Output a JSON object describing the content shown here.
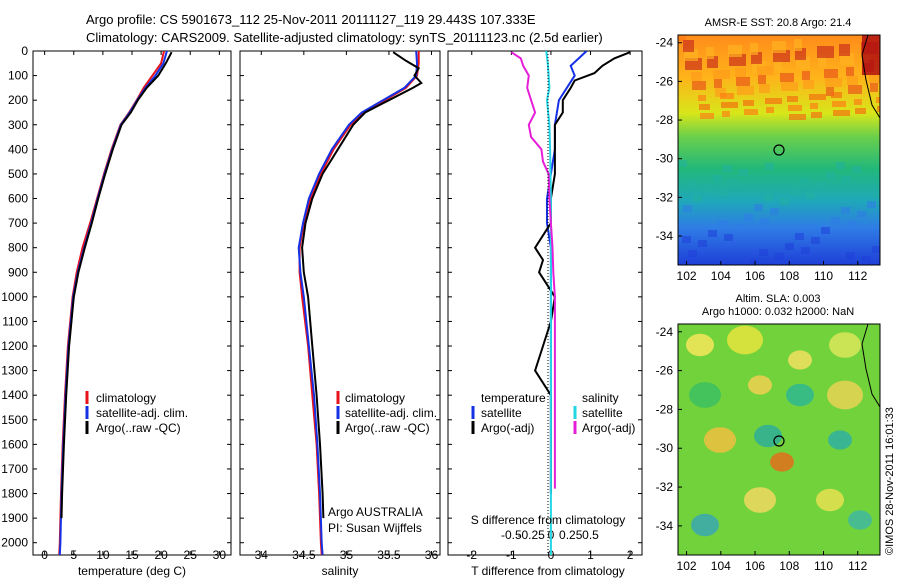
{
  "figure": {
    "title_line1": "Argo profile: CS 5901673_112 25-Nov-2011 20111127_119 29.443S 107.333E",
    "title_line2": "Climatology: CARS2009. Satellite-adjusted climatology: synTS_20111123.nc (2.5d earlier)",
    "watermark": "©IMOS 28-Nov-2011 16:01:33"
  },
  "colors": {
    "climatology": "#e8131a",
    "satellite": "#1531e6",
    "argo": "#000000",
    "salinity_satellite": "#22d6e6",
    "salinity_argo": "#e61ed8"
  },
  "chart_data": [
    {
      "id": "temperature",
      "type": "line",
      "xlabel": "temperature (deg C)",
      "ylabel": "",
      "xlim": [
        -2,
        32
      ],
      "ylim": [
        2050,
        0
      ],
      "xticks": [
        0,
        5,
        10,
        15,
        20,
        25,
        30
      ],
      "yticks": [
        0,
        100,
        200,
        300,
        400,
        500,
        600,
        700,
        800,
        900,
        1000,
        1100,
        1200,
        1300,
        1400,
        1500,
        1600,
        1700,
        1800,
        1900,
        2000
      ],
      "legend": [
        "climatology",
        "satellite-adj. clim.",
        "Argo(..raw -QC)"
      ],
      "legend_position": "lower-middle",
      "series": [
        {
          "name": "climatology",
          "color": "climatology",
          "depth": [
            0,
            50,
            100,
            150,
            200,
            250,
            300,
            400,
            500,
            600,
            700,
            800,
            900,
            1000,
            1200,
            1400,
            1600,
            1800,
            2000,
            2050
          ],
          "values": [
            20.5,
            20.0,
            18.5,
            17.0,
            15.8,
            14.5,
            13.0,
            11.5,
            10.2,
            9.0,
            7.8,
            6.5,
            5.5,
            4.8,
            4.0,
            3.5,
            3.1,
            2.8,
            2.6,
            2.5
          ]
        },
        {
          "name": "satellite-adj. clim.",
          "color": "satellite",
          "depth": [
            0,
            50,
            100,
            150,
            200,
            250,
            300,
            400,
            500,
            600,
            700,
            800,
            900,
            1000,
            1200,
            1400,
            1600,
            1800,
            2000,
            2050
          ],
          "values": [
            21.0,
            20.4,
            19.0,
            17.3,
            15.9,
            14.6,
            13.1,
            11.6,
            10.3,
            9.1,
            8.0,
            6.8,
            5.7,
            4.9,
            4.1,
            3.6,
            3.2,
            2.9,
            2.7,
            2.6
          ]
        },
        {
          "name": "Argo(..raw -QC)",
          "color": "argo",
          "depth": [
            5,
            50,
            100,
            150,
            200,
            250,
            300,
            400,
            500,
            600,
            700,
            800,
            900,
            1000,
            1200,
            1400,
            1600,
            1800,
            1900
          ],
          "values": [
            21.8,
            20.8,
            19.5,
            17.5,
            16.0,
            14.8,
            13.2,
            11.7,
            10.4,
            9.2,
            8.1,
            6.9,
            5.8,
            5.0,
            4.2,
            3.7,
            3.3,
            3.0,
            2.9
          ]
        }
      ]
    },
    {
      "id": "salinity",
      "type": "line",
      "xlabel": "salinity",
      "ylabel": "",
      "xlim": [
        33.75,
        36.1
      ],
      "ylim": [
        2050,
        0
      ],
      "xticks": [
        34,
        34.5,
        35,
        35.5,
        36
      ],
      "yticks": [
        0,
        100,
        200,
        300,
        400,
        500,
        600,
        700,
        800,
        900,
        1000,
        1100,
        1200,
        1300,
        1400,
        1500,
        1600,
        1700,
        1800,
        1900,
        2000
      ],
      "legend": [
        "climatology",
        "satellite-adj. clim.",
        "Argo(..raw -QC)"
      ],
      "legend_position": "lower-middle",
      "annotations": [
        "Argo AUSTRALIA",
        "PI: Susan Wijffels"
      ],
      "series": [
        {
          "name": "climatology",
          "color": "climatology",
          "depth": [
            0,
            50,
            100,
            150,
            200,
            250,
            300,
            400,
            500,
            600,
            700,
            800,
            900,
            1000,
            1200,
            1400,
            1600,
            1800,
            2000,
            2050
          ],
          "values": [
            35.85,
            35.85,
            35.83,
            35.7,
            35.45,
            35.2,
            35.05,
            34.85,
            34.7,
            34.58,
            34.5,
            34.45,
            34.45,
            34.48,
            34.55,
            34.6,
            34.65,
            34.68,
            34.7,
            34.71
          ]
        },
        {
          "name": "satellite-adj. clim.",
          "color": "satellite",
          "depth": [
            0,
            50,
            100,
            150,
            200,
            250,
            300,
            400,
            500,
            600,
            700,
            800,
            900,
            1000,
            1200,
            1400,
            1600,
            1800,
            2000,
            2050
          ],
          "values": [
            35.82,
            35.83,
            35.82,
            35.68,
            35.43,
            35.18,
            35.03,
            34.83,
            34.68,
            34.56,
            34.49,
            34.44,
            34.46,
            34.5,
            34.56,
            34.62,
            34.66,
            34.69,
            34.71,
            34.72
          ]
        },
        {
          "name": "Argo(..raw -QC)",
          "color": "argo",
          "depth": [
            5,
            40,
            70,
            100,
            130,
            150,
            200,
            250,
            300,
            400,
            500,
            600,
            700,
            800,
            900,
            1000,
            1200,
            1400,
            1600,
            1800,
            1900
          ],
          "values": [
            35.55,
            35.7,
            35.85,
            35.8,
            35.88,
            35.78,
            35.5,
            35.22,
            35.08,
            34.9,
            34.72,
            34.6,
            34.52,
            34.48,
            34.5,
            34.55,
            34.6,
            34.65,
            34.69,
            34.72,
            34.73
          ]
        }
      ]
    },
    {
      "id": "differences",
      "type": "line",
      "xlabel": "T difference from climatology",
      "xlabel_top": "S difference from climatology",
      "xlim": [
        -2.6,
        2.3
      ],
      "ylim": [
        2050,
        0
      ],
      "xticks": [
        -2,
        -1,
        0,
        1,
        2
      ],
      "xticks_salinity": [
        -0.5,
        -0.25,
        0,
        0.25,
        0.5
      ],
      "legend_groups": [
        "temperature",
        "salinity"
      ],
      "legend": [
        "satellite",
        "Argo(-adj)",
        "satellite",
        "Argo(-adj)"
      ],
      "legend_position": "lower-middle",
      "series": [
        {
          "name": "temperature satellite",
          "color": "satellite",
          "depth": [
            0,
            30,
            60,
            100,
            150,
            200,
            300,
            400,
            500,
            600,
            700,
            800,
            1000,
            1200,
            1400,
            1600,
            1800
          ],
          "values": [
            0.9,
            0.7,
            0.5,
            0.6,
            0.4,
            0.2,
            0.1,
            0.1,
            0.0,
            -0.1,
            -0.1,
            0.0,
            0.0,
            0.0,
            0.0,
            0.0,
            0.0
          ]
        },
        {
          "name": "temperature Argo(-adj)",
          "color": "argo",
          "depth": [
            5,
            30,
            60,
            90,
            120,
            150,
            200,
            250,
            300,
            400,
            500,
            600,
            700,
            800,
            850,
            900,
            950,
            1000,
            1100,
            1200,
            1300,
            1400,
            1600,
            1800
          ],
          "values": [
            2.0,
            1.6,
            1.3,
            1.1,
            0.6,
            0.5,
            0.3,
            0.3,
            0.1,
            0.1,
            0.1,
            0.0,
            0.0,
            -0.4,
            -0.2,
            -0.3,
            -0.1,
            0.1,
            0.0,
            -0.2,
            -0.4,
            0.0,
            0.0,
            0.0
          ]
        },
        {
          "name": "salinity satellite",
          "color": "salinity_satellite",
          "depth": [
            0,
            50,
            100,
            150,
            200,
            300,
            400,
            600,
            800,
            1000,
            1500,
            2050
          ],
          "values": [
            -0.06,
            -0.04,
            -0.03,
            -0.02,
            -0.05,
            -0.02,
            -0.01,
            0.0,
            0.0,
            0.0,
            0.0,
            0.0
          ]
        },
        {
          "name": "salinity Argo(-adj)",
          "color": "salinity_argo",
          "depth": [
            5,
            30,
            60,
            100,
            150,
            200,
            250,
            300,
            350,
            400,
            450,
            500,
            600,
            700,
            800,
            900,
            1000,
            1200,
            1400,
            1600,
            1780
          ],
          "values": [
            -0.5,
            -0.38,
            -0.35,
            -0.28,
            -0.3,
            -0.25,
            -0.2,
            -0.28,
            -0.25,
            -0.12,
            -0.1,
            -0.03,
            -0.02,
            0.0,
            0.02,
            0.03,
            0.05,
            0.05,
            0.05,
            0.05,
            0.05
          ]
        }
      ]
    },
    {
      "id": "sst_map",
      "type": "heatmap",
      "title": "AMSR-E SST: 20.8 Argo: 21.4",
      "xlim": [
        101.5,
        113.3
      ],
      "ylim": [
        -35.5,
        -23.6
      ],
      "xticks": [
        102,
        104,
        106,
        108,
        110,
        112
      ],
      "yticks": [
        -24,
        -26,
        -28,
        -30,
        -32,
        -34
      ],
      "marker": {
        "lon": 107.33,
        "lat": -29.44
      }
    },
    {
      "id": "sla_map",
      "type": "heatmap",
      "title": "Altim. SLA: 0.003",
      "subtitle": "Argo h1000: 0.032 h2000: NaN",
      "xlim": [
        101.5,
        113.3
      ],
      "ylim": [
        -35.5,
        -23.6
      ],
      "xticks": [
        102,
        104,
        106,
        108,
        110,
        112
      ],
      "yticks": [
        -24,
        -26,
        -28,
        -30,
        -32,
        -34
      ],
      "marker": {
        "lon": 107.33,
        "lat": -29.44
      }
    }
  ]
}
